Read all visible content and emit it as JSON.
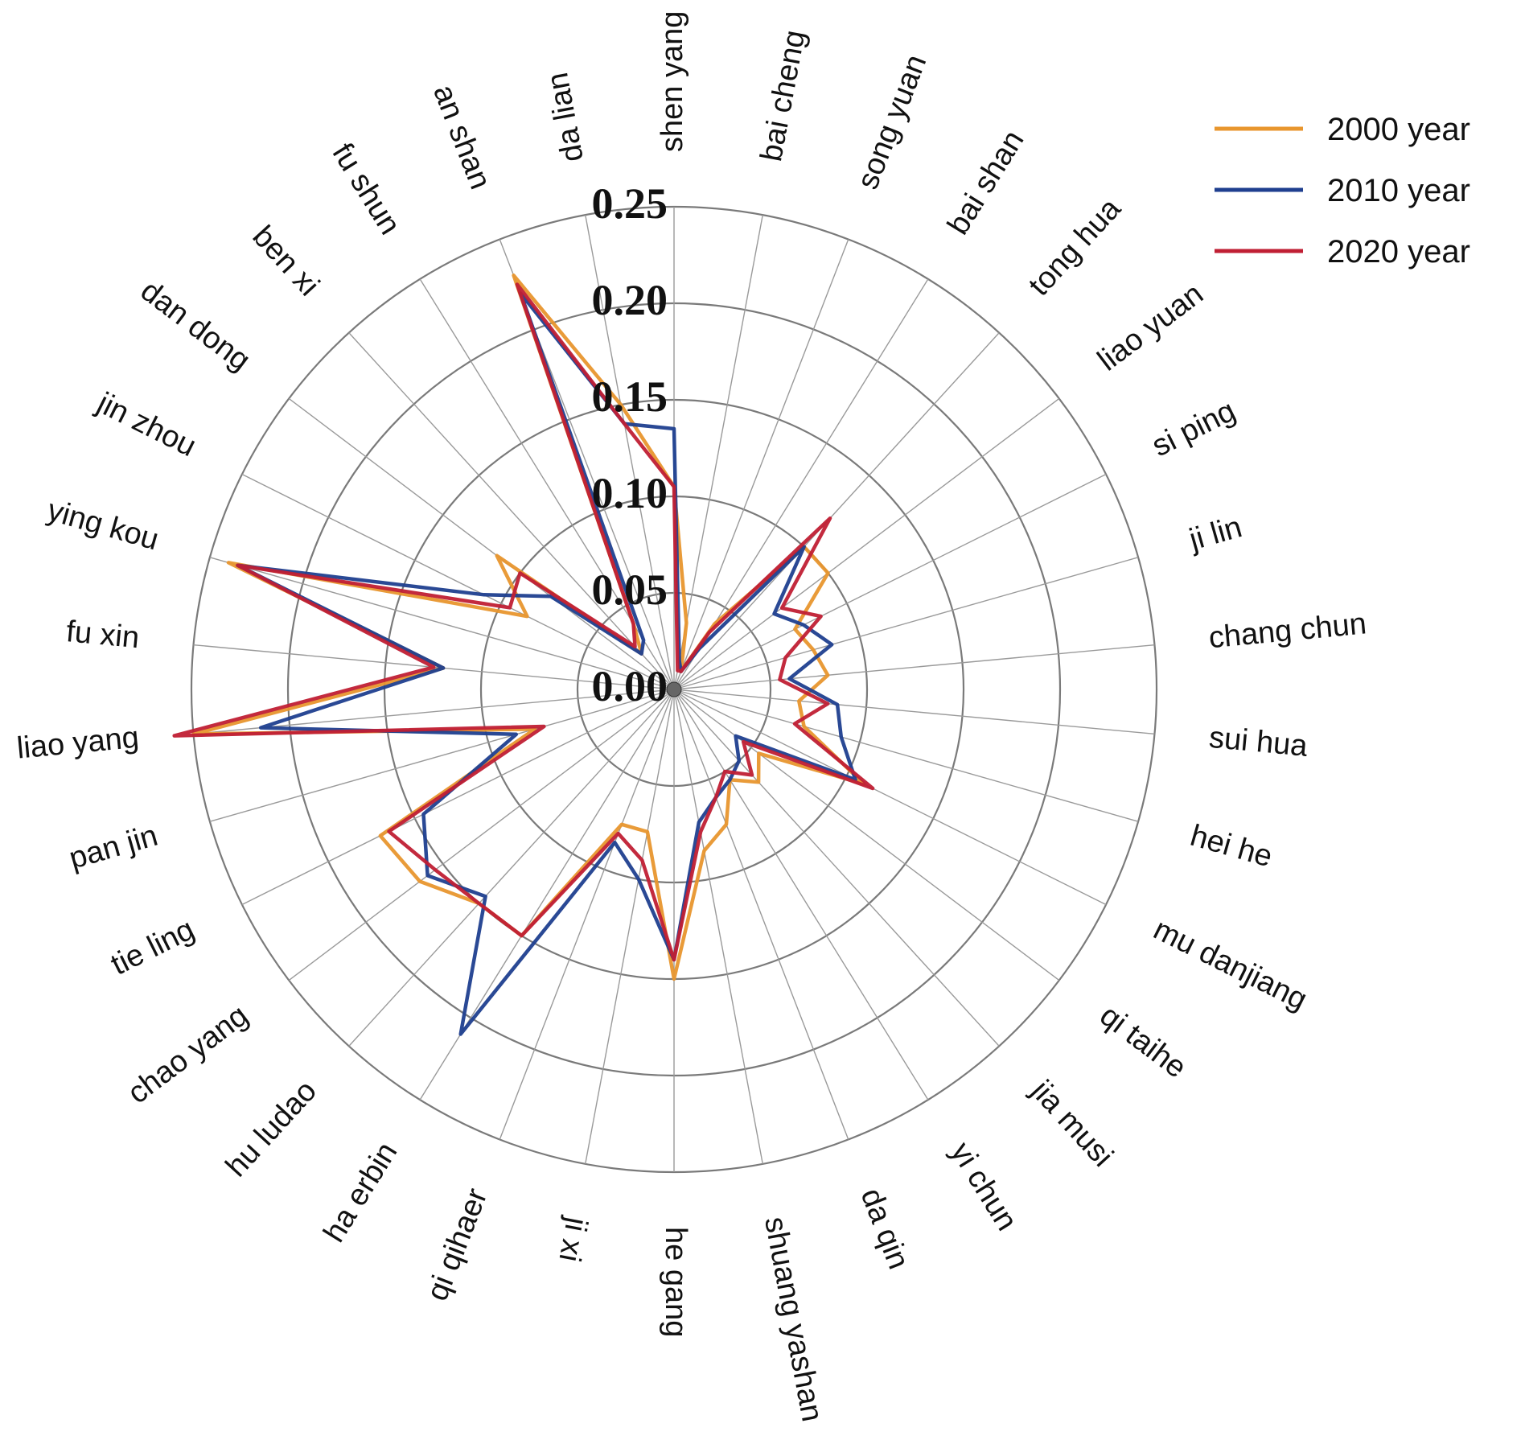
{
  "chart_data": {
    "type": "radar",
    "title": "",
    "rlim": [
      0,
      0.25
    ],
    "ticks": [
      "0.00",
      "0.05",
      "0.10",
      "0.15",
      "0.20",
      "0.25"
    ],
    "tick_values": [
      0,
      0.05,
      0.1,
      0.15,
      0.2,
      0.25
    ],
    "categories": [
      "shen yang",
      "bai cheng",
      "song yuan",
      "bai shan",
      "tong hua",
      "liao yuan",
      "si ping",
      "ji lin",
      "chang chun",
      "sui hua",
      "hei he",
      "mu danjiang",
      "qi taihe",
      "jia musi",
      "yi chun",
      "da qin",
      "shuang yashan",
      "he gang",
      "ji xi",
      "qi qihaer",
      "ha erbin",
      "hu ludao",
      "chao yang",
      "tie ling",
      "pan jin",
      "liao yang",
      "fu xin",
      "ying kou",
      "jin zhou",
      "dan dong",
      "ben xi",
      "fu shun",
      "an shan",
      "da lian"
    ],
    "legend_position": "top-right",
    "series": [
      {
        "name": "2000 year",
        "color": "#e8962e",
        "values": [
          0.105,
          0.035,
          0.01,
          0.04,
          0.1,
          0.1,
          0.07,
          0.075,
          0.08,
          0.065,
          0.07,
          0.11,
          0.055,
          0.065,
          0.055,
          0.075,
          0.085,
          0.15,
          0.075,
          0.075,
          0.15,
          0.15,
          0.165,
          0.17,
          0.075,
          0.25,
          0.12,
          0.24,
          0.085,
          0.115,
          0.025,
          0.04,
          0.23,
          0.15
        ]
      },
      {
        "name": "2010 year",
        "color": "#1f3f8f",
        "values": [
          0.135,
          0.015,
          0.01,
          0.025,
          0.1,
          0.065,
          0.075,
          0.085,
          0.06,
          0.085,
          0.09,
          0.105,
          0.04,
          0.05,
          0.055,
          0.06,
          0.07,
          0.14,
          0.1,
          0.085,
          0.21,
          0.145,
          0.16,
          0.145,
          0.085,
          0.215,
          0.12,
          0.235,
          0.11,
          0.08,
          0.025,
          0.03,
          0.22,
          0.14
        ]
      },
      {
        "name": "2020 year",
        "color": "#c01f34",
        "values": [
          0.105,
          0.01,
          0.01,
          0.035,
          0.12,
          0.07,
          0.085,
          0.06,
          0.055,
          0.08,
          0.065,
          0.115,
          0.045,
          0.06,
          0.05,
          0.06,
          0.075,
          0.14,
          0.09,
          0.08,
          0.15,
          0.15,
          0.155,
          0.165,
          0.07,
          0.26,
          0.125,
          0.235,
          0.095,
          0.1,
          0.03,
          0.04,
          0.225,
          0.14
        ]
      }
    ]
  }
}
